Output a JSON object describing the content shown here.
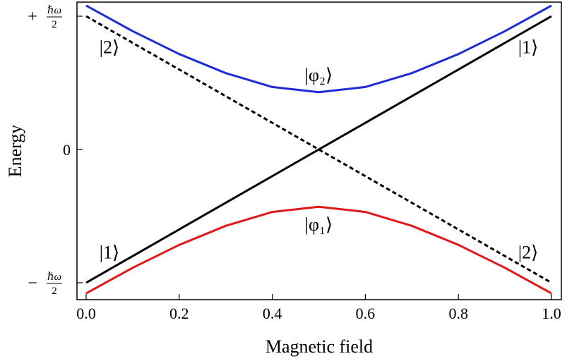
{
  "chart_data": {
    "type": "line",
    "xlabel": "Magnetic field",
    "ylabel": "Energy",
    "xlim": [
      0.0,
      1.0
    ],
    "ylim": [
      -1.12,
      1.12
    ],
    "x_ticks": [
      "0.0",
      "0.2",
      "0.4",
      "0.6",
      "0.8",
      "1.0"
    ],
    "y_ticks": [
      {
        "value": 1,
        "sign": "+",
        "numerator": "ℏω",
        "denominator": "2"
      },
      {
        "value": 0,
        "label": "0"
      },
      {
        "value": -1,
        "sign": "−",
        "numerator": "ℏω",
        "denominator": "2"
      }
    ],
    "grid": false,
    "series": [
      {
        "color": "#1f2bd6",
        "style": "solid",
        "x": [
          0.0,
          0.1,
          0.2,
          0.3,
          0.4,
          0.5,
          0.6,
          0.7,
          0.8,
          0.9,
          1.0
        ],
        "y": [
          1.08,
          0.888,
          0.716,
          0.573,
          0.469,
          0.43,
          0.469,
          0.573,
          0.716,
          0.888,
          1.08
        ]
      },
      {
        "color": "#e01818",
        "style": "solid",
        "x": [
          0.0,
          0.1,
          0.2,
          0.3,
          0.4,
          0.5,
          0.6,
          0.7,
          0.8,
          0.9,
          1.0
        ],
        "y": [
          -1.08,
          -0.888,
          -0.716,
          -0.573,
          -0.469,
          -0.43,
          -0.469,
          -0.573,
          -0.716,
          -0.888,
          -1.08
        ]
      },
      {
        "color": "#000000",
        "style": "solid",
        "x": [
          0.0,
          1.0
        ],
        "y": [
          -1.0,
          1.0
        ]
      },
      {
        "color": "#000000",
        "style": "dashed",
        "x": [
          0.0,
          1.0
        ],
        "y": [
          1.0,
          -1.0
        ]
      }
    ],
    "annotations": [
      {
        "text": "|2⟩",
        "x": 0.05,
        "y": 0.77
      },
      {
        "text": "|1⟩",
        "x": 0.95,
        "y": 0.77
      },
      {
        "text": "|φ₂⟩",
        "x": 0.5,
        "y": 0.56
      },
      {
        "text": "|φ₁⟩",
        "x": 0.5,
        "y": -0.56
      },
      {
        "text": "|1⟩",
        "x": 0.05,
        "y": -0.77
      },
      {
        "text": "|2⟩",
        "x": 0.95,
        "y": -0.77
      }
    ]
  }
}
